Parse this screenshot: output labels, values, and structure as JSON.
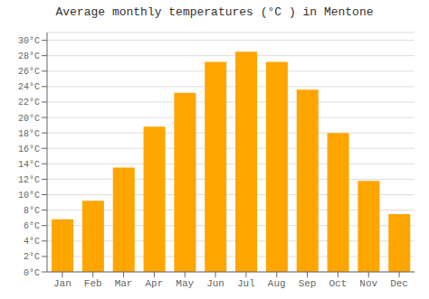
{
  "chart_data": {
    "type": "bar",
    "title": "Average monthly temperatures (°C ) in Mentone",
    "categories": [
      "Jan",
      "Feb",
      "Mar",
      "Apr",
      "May",
      "Jun",
      "Jul",
      "Aug",
      "Sep",
      "Oct",
      "Nov",
      "Dec"
    ],
    "values": [
      6.8,
      9.2,
      13.5,
      18.8,
      23.2,
      27.2,
      28.5,
      27.2,
      23.6,
      18.0,
      11.8,
      7.5
    ],
    "color": "#FFA500",
    "ylim": [
      0,
      31
    ],
    "yticks": [
      {
        "value": 0,
        "label": "0°C"
      },
      {
        "value": 2,
        "label": "2°C"
      },
      {
        "value": 4,
        "label": "4°C"
      },
      {
        "value": 6,
        "label": "6°C"
      },
      {
        "value": 8,
        "label": "8°C"
      },
      {
        "value": 10,
        "label": "10°C"
      },
      {
        "value": 12,
        "label": "12°C"
      },
      {
        "value": 14,
        "label": "14°C"
      },
      {
        "value": 16,
        "label": "16°C"
      },
      {
        "value": 18,
        "label": "18°C"
      },
      {
        "value": 20,
        "label": "20°C"
      },
      {
        "value": 22,
        "label": "22°C"
      },
      {
        "value": 24,
        "label": "24°C"
      },
      {
        "value": 26,
        "label": "26°C"
      },
      {
        "value": 28,
        "label": "28°C"
      },
      {
        "value": 30,
        "label": "30°C"
      }
    ],
    "grid": true
  }
}
